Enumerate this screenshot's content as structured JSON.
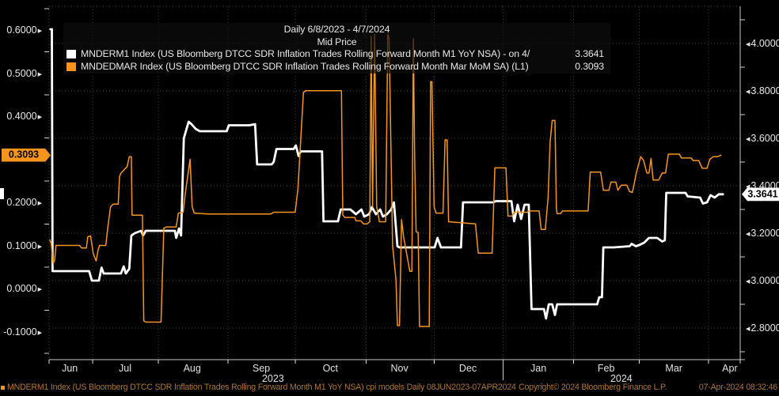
{
  "header": {
    "title_line1": "Daily 6/8/2023 - 4/7/2024",
    "title_line2": "Mid Price"
  },
  "legend": {
    "series": [
      {
        "swatch_color": "#ffffff",
        "label": "MNDERM1 Index (US Bloomberg DTCC SDR Inflation Trades Rolling Forward Month M1 YoY NSA) -  on 4/",
        "value": "3.3641"
      },
      {
        "swatch_color": "#f7941d",
        "label": "MNDEDMAR Index (US Bloomberg DTCC SDR Inflation Trades Rolling Forward Month Mar MoM SA)  (L1)",
        "value": "0.3093"
      }
    ]
  },
  "left_axis": {
    "ticks": [
      {
        "label": "0.6000",
        "value": 0.6
      },
      {
        "label": "0.5000",
        "value": 0.5
      },
      {
        "label": "0.4000",
        "value": 0.4
      },
      {
        "label": "0.2000",
        "value": 0.2
      },
      {
        "label": "0.1000",
        "value": 0.1
      },
      {
        "label": "0.0000",
        "value": 0.0
      },
      {
        "label": "-0.1000",
        "value": -0.1
      }
    ],
    "badge": {
      "label": "0.3093",
      "value": 0.3093,
      "color": "#f7941d"
    }
  },
  "right_axis": {
    "ticks": [
      {
        "label": "4.0000",
        "value": 4.0
      },
      {
        "label": "3.8000",
        "value": 3.8
      },
      {
        "label": "3.6000",
        "value": 3.6
      },
      {
        "label": "3.4000",
        "value": 3.4
      },
      {
        "label": "3.2000",
        "value": 3.2
      },
      {
        "label": "3.0000",
        "value": 3.0
      },
      {
        "label": "2.8000",
        "value": 2.8
      }
    ],
    "badge": {
      "label": "3.3641",
      "value": 3.3641,
      "color": "#ffffff"
    }
  },
  "x_axis": {
    "months": [
      {
        "label": "Jun",
        "t": 0.03
      },
      {
        "label": "Jul",
        "t": 0.11
      },
      {
        "label": "Aug",
        "t": 0.207
      },
      {
        "label": "Sep",
        "t": 0.307
      },
      {
        "label": "Oct",
        "t": 0.407
      },
      {
        "label": "Nov",
        "t": 0.507
      },
      {
        "label": "Dec",
        "t": 0.606
      },
      {
        "label": "Jan",
        "t": 0.708
      },
      {
        "label": "Feb",
        "t": 0.806
      },
      {
        "label": "Mar",
        "t": 0.904
      },
      {
        "label": "Apr",
        "t": 0.985
      }
    ],
    "ticks_t": [
      0,
      0.063,
      0.158,
      0.259,
      0.356,
      0.459,
      0.557,
      0.657,
      0.759,
      0.854,
      0.954,
      1.0
    ],
    "years": [
      {
        "label": "2023",
        "t": 0.324
      },
      {
        "label": "2024",
        "t": 0.828
      }
    ],
    "year_separator_t": 0.657
  },
  "footer": {
    "left": "MNDERM1 Index (US Bloomberg DTCC SDR Inflation Trades Rolling Forward Month M1 YoY NSA) cpi models  Daily 08JUN2023-07APR2024",
    "center": "Copyright© 2024 Bloomberg Finance L.P.",
    "right": "07-Apr-2024 08:32:46"
  },
  "colors": {
    "background": "#000000",
    "grid": "#3d3d3d",
    "axis_line": "#c8c8c8",
    "white_series": "#ffffff",
    "orange_series": "#f7941d",
    "footer_text": "#b0762b"
  },
  "chart_data": {
    "type": "line",
    "title": "Mid Price",
    "subtitle": "Daily 6/8/2023 - 4/7/2024",
    "x_range": {
      "start": "2023-06-08",
      "end": "2024-04-07",
      "note": "t is linear fraction of date range"
    },
    "left_ylim": [
      -0.165,
      0.655
    ],
    "right_ylim": [
      2.667,
      4.157
    ],
    "grid": true,
    "legend_position": "top-left",
    "series": [
      {
        "name": "MNDERM1 Index (US Bloomberg DTCC SDR Inflation Trades Rolling Forward Month M1 YoY NSA)",
        "axis": "right",
        "color": "#ffffff",
        "last_value": 3.3641,
        "points": [
          [
            0.002,
            4.06
          ],
          [
            0.004,
            4.06
          ],
          [
            0.005,
            3.04
          ],
          [
            0.058,
            3.04
          ],
          [
            0.062,
            3.0
          ],
          [
            0.072,
            3.0
          ],
          [
            0.076,
            3.055
          ],
          [
            0.079,
            3.03
          ],
          [
            0.104,
            3.03
          ],
          [
            0.108,
            3.06
          ],
          [
            0.111,
            3.03
          ],
          [
            0.116,
            3.05
          ],
          [
            0.119,
            3.19
          ],
          [
            0.124,
            3.2
          ],
          [
            0.133,
            3.21
          ],
          [
            0.136,
            3.19
          ],
          [
            0.14,
            3.21
          ],
          [
            0.182,
            3.21
          ],
          [
            0.184,
            3.18
          ],
          [
            0.188,
            3.22
          ],
          [
            0.191,
            3.19
          ],
          [
            0.195,
            3.6
          ],
          [
            0.202,
            3.67
          ],
          [
            0.206,
            3.66
          ],
          [
            0.212,
            3.64
          ],
          [
            0.218,
            3.63
          ],
          [
            0.257,
            3.63
          ],
          [
            0.26,
            3.655
          ],
          [
            0.29,
            3.655
          ],
          [
            0.298,
            3.66
          ],
          [
            0.301,
            3.49
          ],
          [
            0.322,
            3.49
          ],
          [
            0.325,
            3.5
          ],
          [
            0.329,
            3.555
          ],
          [
            0.354,
            3.555
          ],
          [
            0.357,
            3.57
          ],
          [
            0.361,
            3.525
          ],
          [
            0.364,
            3.545
          ],
          [
            0.395,
            3.545
          ],
          [
            0.397,
            3.25
          ],
          [
            0.418,
            3.25
          ],
          [
            0.422,
            3.3
          ],
          [
            0.436,
            3.3
          ],
          [
            0.444,
            3.28
          ],
          [
            0.452,
            3.3
          ],
          [
            0.456,
            3.27
          ],
          [
            0.463,
            3.28
          ],
          [
            0.467,
            3.31
          ],
          [
            0.473,
            3.28
          ],
          [
            0.479,
            3.3
          ],
          [
            0.483,
            3.27
          ],
          [
            0.489,
            3.28
          ],
          [
            0.495,
            3.3
          ],
          [
            0.499,
            3.33
          ],
          [
            0.504,
            3.145
          ],
          [
            0.507,
            3.14
          ],
          [
            0.558,
            3.14
          ],
          [
            0.562,
            3.18
          ],
          [
            0.567,
            3.14
          ],
          [
            0.596,
            3.14
          ],
          [
            0.599,
            3.33
          ],
          [
            0.643,
            3.33
          ],
          [
            0.646,
            3.335
          ],
          [
            0.669,
            3.335
          ],
          [
            0.673,
            3.25
          ],
          [
            0.678,
            3.32
          ],
          [
            0.683,
            3.26
          ],
          [
            0.688,
            3.32
          ],
          [
            0.694,
            3.32
          ],
          [
            0.698,
            2.88
          ],
          [
            0.716,
            2.88
          ],
          [
            0.719,
            2.84
          ],
          [
            0.723,
            2.9
          ],
          [
            0.728,
            2.9
          ],
          [
            0.732,
            2.855
          ],
          [
            0.735,
            2.9
          ],
          [
            0.793,
            2.9
          ],
          [
            0.796,
            2.93
          ],
          [
            0.8,
            2.93
          ],
          [
            0.802,
            3.14
          ],
          [
            0.817,
            3.14
          ],
          [
            0.84,
            3.145
          ],
          [
            0.843,
            3.155
          ],
          [
            0.849,
            3.145
          ],
          [
            0.854,
            3.15
          ],
          [
            0.861,
            3.16
          ],
          [
            0.868,
            3.18
          ],
          [
            0.88,
            3.18
          ],
          [
            0.887,
            3.165
          ],
          [
            0.891,
            3.17
          ],
          [
            0.893,
            3.37
          ],
          [
            0.914,
            3.37
          ],
          [
            0.921,
            3.37
          ],
          [
            0.924,
            3.355
          ],
          [
            0.942,
            3.35
          ],
          [
            0.946,
            3.325
          ],
          [
            0.952,
            3.33
          ],
          [
            0.957,
            3.36
          ],
          [
            0.963,
            3.35
          ],
          [
            0.969,
            3.3641
          ],
          [
            0.975,
            3.3641
          ]
        ]
      },
      {
        "name": "MNDEDMAR Index (US Bloomberg DTCC SDR Inflation Trades Rolling Forward Month Mar MoM SA)",
        "axis": "left",
        "color": "#f7941d",
        "last_value": 0.3093,
        "points": [
          [
            0.001,
            0.113
          ],
          [
            0.003,
            0.105
          ],
          [
            0.006,
            0.058
          ],
          [
            0.008,
            0.065
          ],
          [
            0.01,
            0.1
          ],
          [
            0.044,
            0.1
          ],
          [
            0.047,
            0.094
          ],
          [
            0.054,
            0.094
          ],
          [
            0.056,
            0.12
          ],
          [
            0.06,
            0.122
          ],
          [
            0.064,
            0.08
          ],
          [
            0.068,
            0.064
          ],
          [
            0.071,
            0.09
          ],
          [
            0.073,
            0.1
          ],
          [
            0.082,
            0.1
          ],
          [
            0.086,
            0.155
          ],
          [
            0.089,
            0.19
          ],
          [
            0.093,
            0.196
          ],
          [
            0.1,
            0.196
          ],
          [
            0.102,
            0.26
          ],
          [
            0.104,
            0.268
          ],
          [
            0.113,
            0.283
          ],
          [
            0.116,
            0.306
          ],
          [
            0.119,
            0.306
          ],
          [
            0.12,
            0.17
          ],
          [
            0.135,
            0.17
          ],
          [
            0.137,
            -0.075
          ],
          [
            0.14,
            -0.078
          ],
          [
            0.162,
            -0.078
          ],
          [
            0.166,
            0.14
          ],
          [
            0.17,
            0.143
          ],
          [
            0.184,
            0.143
          ],
          [
            0.187,
            0.175
          ],
          [
            0.194,
            0.177
          ],
          [
            0.197,
            0.22
          ],
          [
            0.204,
            0.3
          ],
          [
            0.207,
            0.19
          ],
          [
            0.21,
            0.175
          ],
          [
            0.229,
            0.173
          ],
          [
            0.321,
            0.173
          ],
          [
            0.325,
            0.177
          ],
          [
            0.356,
            0.177
          ],
          [
            0.36,
            0.23
          ],
          [
            0.368,
            0.455
          ],
          [
            0.371,
            0.459
          ],
          [
            0.423,
            0.459
          ],
          [
            0.425,
            0.17
          ],
          [
            0.428,
            0.165
          ],
          [
            0.442,
            0.165
          ],
          [
            0.444,
            0.157
          ],
          [
            0.451,
            0.157
          ],
          [
            0.455,
            0.15
          ],
          [
            0.46,
            0.15
          ],
          [
            0.464,
            0.155
          ],
          [
            0.466,
            0.585
          ],
          [
            0.468,
            0.19
          ],
          [
            0.471,
            0.59
          ],
          [
            0.474,
            0.19
          ],
          [
            0.478,
            0.155
          ],
          [
            0.487,
            0.155
          ],
          [
            0.49,
            0.59
          ],
          [
            0.492,
            0.58
          ],
          [
            0.497,
            0.1
          ],
          [
            0.502,
            0.02
          ],
          [
            0.504,
            -0.086
          ],
          [
            0.507,
            -0.086
          ],
          [
            0.51,
            0.16
          ],
          [
            0.513,
            0.12
          ],
          [
            0.522,
            0.04
          ],
          [
            0.525,
            0.04
          ],
          [
            0.527,
            0.58
          ],
          [
            0.529,
            0.3
          ],
          [
            0.531,
            0.132
          ],
          [
            0.534,
            0.13
          ],
          [
            0.536,
            -0.088
          ],
          [
            0.55,
            -0.088
          ],
          [
            0.552,
            0.48
          ],
          [
            0.554,
            0.48
          ],
          [
            0.557,
            0.19
          ],
          [
            0.56,
            0.175
          ],
          [
            0.57,
            0.175
          ],
          [
            0.573,
            0.345
          ],
          [
            0.576,
            0.345
          ],
          [
            0.578,
            0.155
          ],
          [
            0.617,
            0.15
          ],
          [
            0.621,
            0.082
          ],
          [
            0.641,
            0.082
          ],
          [
            0.645,
            0.28
          ],
          [
            0.661,
            0.28
          ],
          [
            0.664,
            0.168
          ],
          [
            0.67,
            0.168
          ],
          [
            0.673,
            0.177
          ],
          [
            0.692,
            0.177
          ],
          [
            0.695,
            0.18
          ],
          [
            0.709,
            0.18
          ],
          [
            0.712,
            0.137
          ],
          [
            0.718,
            0.137
          ],
          [
            0.722,
            0.21
          ],
          [
            0.725,
            0.34
          ],
          [
            0.728,
            0.39
          ],
          [
            0.732,
            0.39
          ],
          [
            0.734,
            0.187
          ],
          [
            0.735,
            0.174
          ],
          [
            0.74,
            0.174
          ],
          [
            0.743,
            0.18
          ],
          [
            0.78,
            0.18
          ],
          [
            0.783,
            0.27
          ],
          [
            0.798,
            0.27
          ],
          [
            0.802,
            0.228
          ],
          [
            0.81,
            0.228
          ],
          [
            0.813,
            0.247
          ],
          [
            0.82,
            0.247
          ],
          [
            0.823,
            0.228
          ],
          [
            0.828,
            0.24
          ],
          [
            0.836,
            0.24
          ],
          [
            0.84,
            0.225
          ],
          [
            0.844,
            0.223
          ],
          [
            0.85,
            0.27
          ],
          [
            0.856,
            0.306
          ],
          [
            0.86,
            0.298
          ],
          [
            0.865,
            0.268
          ],
          [
            0.868,
            0.268
          ],
          [
            0.871,
            0.302
          ],
          [
            0.874,
            0.252
          ],
          [
            0.882,
            0.252
          ],
          [
            0.887,
            0.268
          ],
          [
            0.892,
            0.268
          ],
          [
            0.896,
            0.312
          ],
          [
            0.912,
            0.312
          ],
          [
            0.915,
            0.303
          ],
          [
            0.929,
            0.303
          ],
          [
            0.932,
            0.297
          ],
          [
            0.94,
            0.297
          ],
          [
            0.945,
            0.279
          ],
          [
            0.952,
            0.279
          ],
          [
            0.956,
            0.3
          ],
          [
            0.961,
            0.306
          ],
          [
            0.967,
            0.306
          ],
          [
            0.972,
            0.3093
          ]
        ]
      }
    ]
  }
}
